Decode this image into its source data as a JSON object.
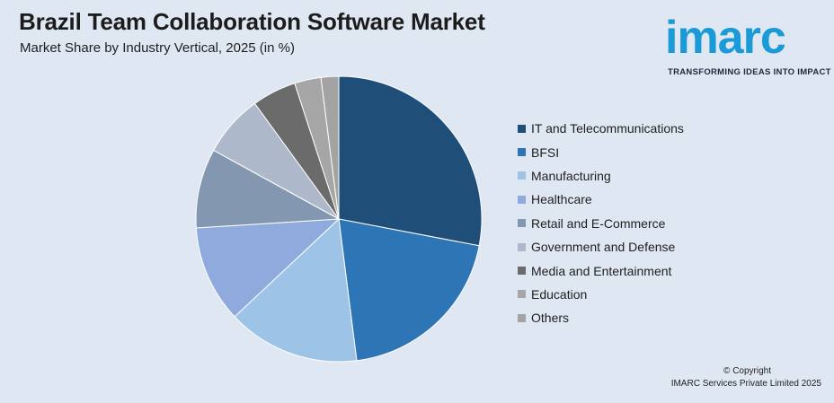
{
  "header": {
    "title": "Brazil Team Collaboration Software Market",
    "subtitle": "Market Share by Industry Vertical, 2025 (in %)"
  },
  "logo": {
    "word": "imarc",
    "tagline": "TRANSFORMING IDEAS INTO IMPACT",
    "color": "#1a9ad6"
  },
  "footer": {
    "copyright": "© Copyright",
    "company": "IMARC Services Private Limited 2025"
  },
  "chart_data": {
    "type": "pie",
    "categories": [
      "IT and Telecommunications",
      "BFSI",
      "Manufacturing",
      "Healthcare",
      "Retail and E-Commerce",
      "Government and Defense",
      "Media and Entertainment",
      "Education",
      "Others"
    ],
    "values": [
      28,
      20,
      15,
      11,
      9,
      7,
      5,
      3,
      2
    ],
    "colors": [
      "#1f4e79",
      "#2e75b6",
      "#9dc3e6",
      "#8faadc",
      "#8497b0",
      "#adb9ca",
      "#6b6b6b",
      "#a6a6a6",
      "#a3a3a3"
    ],
    "legend_position": "right"
  }
}
